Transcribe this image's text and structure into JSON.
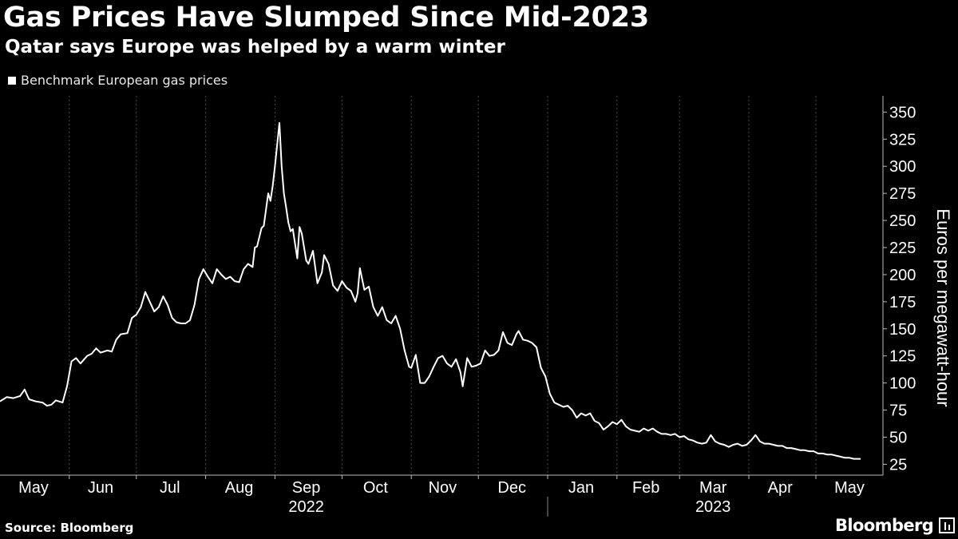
{
  "title": "Gas Prices Have Slumped Since Mid-2023",
  "subtitle": "Qatar says Europe was helped by a warm winter",
  "source": "Source: Bloomberg",
  "brand": "Bloomberg",
  "colors": {
    "background": "#000000",
    "line": "#ffffff",
    "grid": "#444444",
    "text": "#ffffff"
  },
  "chart_data": {
    "type": "line",
    "title": "Gas Prices Have Slumped Since Mid-2023",
    "subtitle": "Qatar says Europe was helped by a warm winter",
    "xlabel": "",
    "ylabel": "Euros per megawatt-hour",
    "y_axis_side": "right",
    "ylim": [
      15,
      365
    ],
    "yticks": [
      25,
      50,
      75,
      100,
      125,
      150,
      175,
      200,
      225,
      250,
      275,
      300,
      325,
      350
    ],
    "xlim": [
      "2022-05-01",
      "2023-05-31"
    ],
    "grid": "vertical dashed at month boundaries",
    "legend_position": "top-left",
    "x_month_labels": [
      {
        "label": "May",
        "date": "2022-05-16"
      },
      {
        "label": "Jun",
        "date": "2022-06-15"
      },
      {
        "label": "Jul",
        "date": "2022-07-16"
      },
      {
        "label": "Aug",
        "date": "2022-08-16"
      },
      {
        "label": "Sep",
        "date": "2022-09-15"
      },
      {
        "label": "Oct",
        "date": "2022-10-16"
      },
      {
        "label": "Nov",
        "date": "2022-11-15"
      },
      {
        "label": "Dec",
        "date": "2022-12-16"
      },
      {
        "label": "Jan",
        "date": "2023-01-16"
      },
      {
        "label": "Feb",
        "date": "2023-02-14"
      },
      {
        "label": "Mar",
        "date": "2023-03-16"
      },
      {
        "label": "Apr",
        "date": "2023-04-15"
      },
      {
        "label": "May",
        "date": "2023-05-16"
      }
    ],
    "gridline_dates": [
      "2022-06-01",
      "2022-07-01",
      "2022-08-01",
      "2022-09-01",
      "2022-10-01",
      "2022-11-01",
      "2022-12-01",
      "2023-01-01",
      "2023-02-01",
      "2023-03-01",
      "2023-04-01",
      "2023-05-01"
    ],
    "year_labels": [
      {
        "label": "2022",
        "date": "2022-09-15"
      },
      {
        "label": "2023",
        "date": "2023-03-16"
      }
    ],
    "year_divider_date": "2023-01-01",
    "series": [
      {
        "name": "Benchmark European gas prices",
        "points": [
          [
            "2022-05-01",
            83
          ],
          [
            "2022-05-04",
            87
          ],
          [
            "2022-05-07",
            86
          ],
          [
            "2022-05-10",
            88
          ],
          [
            "2022-05-12",
            94
          ],
          [
            "2022-05-14",
            85
          ],
          [
            "2022-05-17",
            83
          ],
          [
            "2022-05-20",
            82
          ],
          [
            "2022-05-22",
            79
          ],
          [
            "2022-05-24",
            80
          ],
          [
            "2022-05-26",
            84
          ],
          [
            "2022-05-29",
            82
          ],
          [
            "2022-05-31",
            97
          ],
          [
            "2022-06-02",
            120
          ],
          [
            "2022-06-04",
            123
          ],
          [
            "2022-06-06",
            118
          ],
          [
            "2022-06-09",
            125
          ],
          [
            "2022-06-11",
            127
          ],
          [
            "2022-06-13",
            132
          ],
          [
            "2022-06-15",
            128
          ],
          [
            "2022-06-18",
            130
          ],
          [
            "2022-06-20",
            129
          ],
          [
            "2022-06-22",
            140
          ],
          [
            "2022-06-24",
            145
          ],
          [
            "2022-06-27",
            146
          ],
          [
            "2022-06-29",
            160
          ],
          [
            "2022-07-01",
            163
          ],
          [
            "2022-07-03",
            170
          ],
          [
            "2022-07-05",
            184
          ],
          [
            "2022-07-07",
            175
          ],
          [
            "2022-07-09",
            166
          ],
          [
            "2022-07-11",
            170
          ],
          [
            "2022-07-13",
            180
          ],
          [
            "2022-07-15",
            172
          ],
          [
            "2022-07-17",
            160
          ],
          [
            "2022-07-19",
            156
          ],
          [
            "2022-07-21",
            155
          ],
          [
            "2022-07-23",
            155
          ],
          [
            "2022-07-25",
            158
          ],
          [
            "2022-07-27",
            172
          ],
          [
            "2022-07-29",
            196
          ],
          [
            "2022-07-31",
            205
          ],
          [
            "2022-08-02",
            198
          ],
          [
            "2022-08-04",
            192
          ],
          [
            "2022-08-06",
            205
          ],
          [
            "2022-08-08",
            200
          ],
          [
            "2022-08-10",
            196
          ],
          [
            "2022-08-12",
            198
          ],
          [
            "2022-08-14",
            194
          ],
          [
            "2022-08-16",
            193
          ],
          [
            "2022-08-18",
            205
          ],
          [
            "2022-08-20",
            210
          ],
          [
            "2022-08-22",
            207
          ],
          [
            "2022-08-23",
            225
          ],
          [
            "2022-08-24",
            226
          ],
          [
            "2022-08-26",
            243
          ],
          [
            "2022-08-27",
            245
          ],
          [
            "2022-08-29",
            275
          ],
          [
            "2022-08-30",
            268
          ],
          [
            "2022-08-31",
            282
          ],
          [
            "2022-09-01",
            300
          ],
          [
            "2022-09-02",
            320
          ],
          [
            "2022-09-03",
            340
          ],
          [
            "2022-09-04",
            300
          ],
          [
            "2022-09-05",
            275
          ],
          [
            "2022-09-06",
            262
          ],
          [
            "2022-09-07",
            248
          ],
          [
            "2022-09-08",
            240
          ],
          [
            "2022-09-09",
            242
          ],
          [
            "2022-09-11",
            215
          ],
          [
            "2022-09-12",
            244
          ],
          [
            "2022-09-13",
            238
          ],
          [
            "2022-09-15",
            213
          ],
          [
            "2022-09-16",
            210
          ],
          [
            "2022-09-18",
            222
          ],
          [
            "2022-09-20",
            192
          ],
          [
            "2022-09-22",
            202
          ],
          [
            "2022-09-23",
            218
          ],
          [
            "2022-09-25",
            210
          ],
          [
            "2022-09-27",
            190
          ],
          [
            "2022-09-29",
            185
          ],
          [
            "2022-10-01",
            194
          ],
          [
            "2022-10-03",
            188
          ],
          [
            "2022-10-05",
            185
          ],
          [
            "2022-10-07",
            175
          ],
          [
            "2022-10-08",
            183
          ],
          [
            "2022-10-09",
            206
          ],
          [
            "2022-10-11",
            186
          ],
          [
            "2022-10-13",
            189
          ],
          [
            "2022-10-15",
            170
          ],
          [
            "2022-10-17",
            162
          ],
          [
            "2022-10-19",
            170
          ],
          [
            "2022-10-21",
            158
          ],
          [
            "2022-10-23",
            155
          ],
          [
            "2022-10-25",
            162
          ],
          [
            "2022-10-27",
            150
          ],
          [
            "2022-10-29",
            130
          ],
          [
            "2022-10-31",
            115
          ],
          [
            "2022-11-01",
            114
          ],
          [
            "2022-11-03",
            126
          ],
          [
            "2022-11-05",
            100
          ],
          [
            "2022-11-07",
            100
          ],
          [
            "2022-11-09",
            106
          ],
          [
            "2022-11-11",
            115
          ],
          [
            "2022-11-13",
            123
          ],
          [
            "2022-11-15",
            125
          ],
          [
            "2022-11-17",
            118
          ],
          [
            "2022-11-19",
            115
          ],
          [
            "2022-11-21",
            122
          ],
          [
            "2022-11-23",
            110
          ],
          [
            "2022-11-24",
            97
          ],
          [
            "2022-11-26",
            123
          ],
          [
            "2022-11-28",
            115
          ],
          [
            "2022-11-30",
            116
          ],
          [
            "2022-12-02",
            118
          ],
          [
            "2022-12-04",
            130
          ],
          [
            "2022-12-06",
            125
          ],
          [
            "2022-12-08",
            126
          ],
          [
            "2022-12-10",
            130
          ],
          [
            "2022-12-12",
            147
          ],
          [
            "2022-12-14",
            137
          ],
          [
            "2022-12-16",
            135
          ],
          [
            "2022-12-18",
            145
          ],
          [
            "2022-12-19",
            148
          ],
          [
            "2022-12-21",
            140
          ],
          [
            "2022-12-23",
            139
          ],
          [
            "2022-12-25",
            137
          ],
          [
            "2022-12-27",
            133
          ],
          [
            "2022-12-29",
            114
          ],
          [
            "2022-12-31",
            106
          ],
          [
            "2023-01-02",
            90
          ],
          [
            "2023-01-04",
            82
          ],
          [
            "2023-01-06",
            80
          ],
          [
            "2023-01-08",
            78
          ],
          [
            "2023-01-10",
            79
          ],
          [
            "2023-01-12",
            75
          ],
          [
            "2023-01-14",
            68
          ],
          [
            "2023-01-16",
            72
          ],
          [
            "2023-01-18",
            70
          ],
          [
            "2023-01-20",
            72
          ],
          [
            "2023-01-22",
            65
          ],
          [
            "2023-01-24",
            63
          ],
          [
            "2023-01-26",
            57
          ],
          [
            "2023-01-28",
            60
          ],
          [
            "2023-01-30",
            64
          ],
          [
            "2023-02-01",
            62
          ],
          [
            "2023-02-03",
            66
          ],
          [
            "2023-02-05",
            60
          ],
          [
            "2023-02-07",
            57
          ],
          [
            "2023-02-09",
            56
          ],
          [
            "2023-02-11",
            55
          ],
          [
            "2023-02-13",
            58
          ],
          [
            "2023-02-15",
            56
          ],
          [
            "2023-02-17",
            58
          ],
          [
            "2023-02-19",
            55
          ],
          [
            "2023-02-21",
            53
          ],
          [
            "2023-02-23",
            53
          ],
          [
            "2023-02-25",
            52
          ],
          [
            "2023-02-27",
            53
          ],
          [
            "2023-03-01",
            50
          ],
          [
            "2023-03-03",
            51
          ],
          [
            "2023-03-05",
            48
          ],
          [
            "2023-03-07",
            47
          ],
          [
            "2023-03-09",
            45
          ],
          [
            "2023-03-11",
            44
          ],
          [
            "2023-03-13",
            45
          ],
          [
            "2023-03-15",
            52
          ],
          [
            "2023-03-17",
            46
          ],
          [
            "2023-03-19",
            44
          ],
          [
            "2023-03-21",
            43
          ],
          [
            "2023-03-23",
            41
          ],
          [
            "2023-03-25",
            43
          ],
          [
            "2023-03-27",
            44
          ],
          [
            "2023-03-29",
            42
          ],
          [
            "2023-03-31",
            43
          ],
          [
            "2023-04-02",
            47
          ],
          [
            "2023-04-04",
            52
          ],
          [
            "2023-04-06",
            46
          ],
          [
            "2023-04-08",
            44
          ],
          [
            "2023-04-10",
            44
          ],
          [
            "2023-04-12",
            43
          ],
          [
            "2023-04-14",
            42
          ],
          [
            "2023-04-16",
            42
          ],
          [
            "2023-04-18",
            40
          ],
          [
            "2023-04-20",
            40
          ],
          [
            "2023-04-22",
            39
          ],
          [
            "2023-04-24",
            38
          ],
          [
            "2023-04-26",
            38
          ],
          [
            "2023-04-28",
            37
          ],
          [
            "2023-04-30",
            37
          ],
          [
            "2023-05-02",
            35
          ],
          [
            "2023-05-04",
            35
          ],
          [
            "2023-05-06",
            34
          ],
          [
            "2023-05-08",
            34
          ],
          [
            "2023-05-10",
            33
          ],
          [
            "2023-05-12",
            32
          ],
          [
            "2023-05-14",
            31
          ],
          [
            "2023-05-16",
            31
          ],
          [
            "2023-05-18",
            30
          ],
          [
            "2023-05-21",
            30
          ]
        ]
      }
    ]
  }
}
